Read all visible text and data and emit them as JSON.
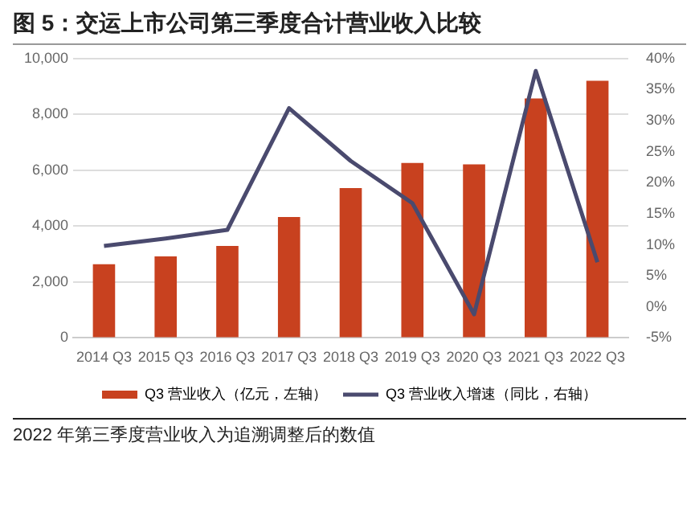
{
  "chart_data": {
    "type": "bar",
    "title": "图 5：交运上市公司第三季度合计营业收入比较",
    "categories": [
      "2014 Q3",
      "2015 Q3",
      "2016 Q3",
      "2017 Q3",
      "2018 Q3",
      "2019 Q3",
      "2020 Q3",
      "2021 Q3",
      "2022 Q3"
    ],
    "series": [
      {
        "name": "Q3 营业收入（亿元，左轴）",
        "color": "#c8411f",
        "values": [
          2640,
          2920,
          3290,
          4330,
          5360,
          6260,
          6210,
          8570,
          9200
        ]
      },
      {
        "name": "Q3 营业收入增速（同比，右轴）",
        "type": "line",
        "axis": "y2",
        "color": "#4a4a6e",
        "values": [
          9.8,
          11,
          12.4,
          32,
          23.5,
          16.7,
          -1.2,
          38,
          7.2
        ]
      }
    ],
    "ylim": [
      0,
      10000
    ],
    "yticks": [
      {
        "value": 0,
        "label": "0"
      },
      {
        "value": 2000,
        "label": "2,000"
      },
      {
        "value": 4000,
        "label": "4,000"
      },
      {
        "value": 6000,
        "label": "6,000"
      },
      {
        "value": 8000,
        "label": "8,000"
      },
      {
        "value": 10000,
        "label": "10,000"
      }
    ],
    "y2lim": [
      -5,
      40
    ],
    "y2ticks": [
      {
        "value": -5,
        "label": "-5%"
      },
      {
        "value": 0,
        "label": "0%"
      },
      {
        "value": 5,
        "label": "5%"
      },
      {
        "value": 10,
        "label": "10%"
      },
      {
        "value": 15,
        "label": "15%"
      },
      {
        "value": 20,
        "label": "20%"
      },
      {
        "value": 25,
        "label": "25%"
      },
      {
        "value": 30,
        "label": "30%"
      },
      {
        "value": 35,
        "label": "35%"
      },
      {
        "value": 40,
        "label": "40%"
      }
    ],
    "grid": "y",
    "legend": "bottom",
    "marker": "none",
    "annotations": [
      "2022 年第三季度营业收入为追溯调整后的数值"
    ]
  }
}
